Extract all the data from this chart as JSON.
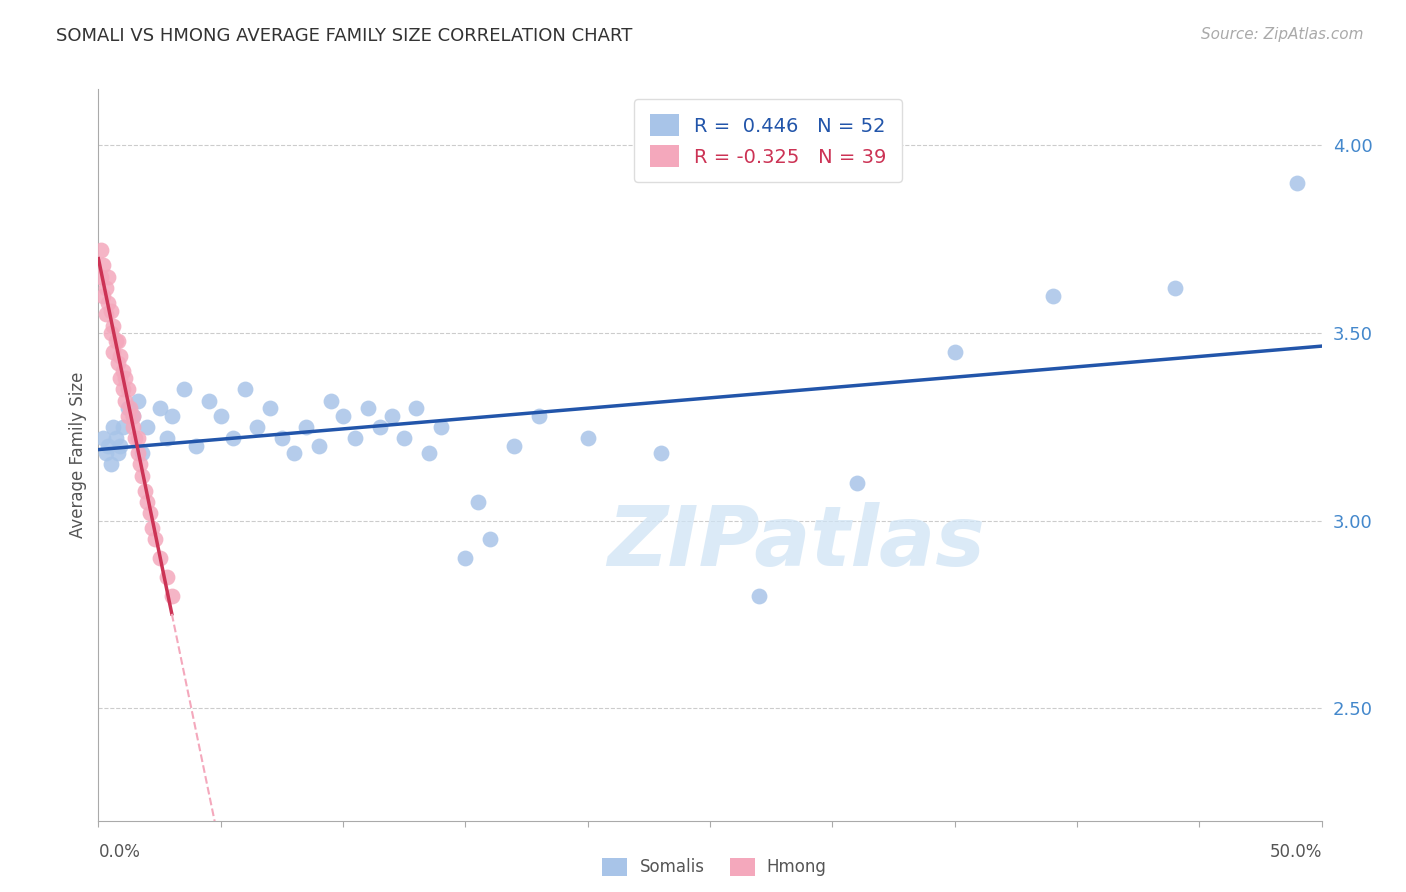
{
  "title": "SOMALI VS HMONG AVERAGE FAMILY SIZE CORRELATION CHART",
  "source": "Source: ZipAtlas.com",
  "ylabel": "Average Family Size",
  "y_ticks_right": [
    2.5,
    3.0,
    3.5,
    4.0
  ],
  "xlim": [
    0.0,
    0.5
  ],
  "ylim": [
    2.2,
    4.15
  ],
  "somali_R": 0.446,
  "somali_N": 52,
  "hmong_R": -0.325,
  "hmong_N": 39,
  "somali_color": "#a8c4e8",
  "hmong_color": "#f4a8bc",
  "somali_line_color": "#2255aa",
  "hmong_line_solid_color": "#cc3355",
  "hmong_line_dashed_color": "#f4a8bc",
  "background_color": "#ffffff",
  "grid_color": "#cccccc",
  "somali_x": [
    0.002,
    0.003,
    0.004,
    0.005,
    0.006,
    0.007,
    0.008,
    0.009,
    0.01,
    0.012,
    0.014,
    0.016,
    0.018,
    0.02,
    0.025,
    0.028,
    0.03,
    0.035,
    0.04,
    0.045,
    0.05,
    0.055,
    0.06,
    0.065,
    0.07,
    0.075,
    0.08,
    0.085,
    0.09,
    0.095,
    0.1,
    0.105,
    0.11,
    0.115,
    0.12,
    0.125,
    0.13,
    0.135,
    0.14,
    0.15,
    0.155,
    0.16,
    0.17,
    0.18,
    0.2,
    0.23,
    0.27,
    0.31,
    0.35,
    0.39,
    0.44,
    0.49
  ],
  "somali_y": [
    3.22,
    3.18,
    3.2,
    3.15,
    3.25,
    3.22,
    3.18,
    3.2,
    3.25,
    3.3,
    3.28,
    3.32,
    3.18,
    3.25,
    3.3,
    3.22,
    3.28,
    3.35,
    3.2,
    3.32,
    3.28,
    3.22,
    3.35,
    3.25,
    3.3,
    3.22,
    3.18,
    3.25,
    3.2,
    3.32,
    3.28,
    3.22,
    3.3,
    3.25,
    3.28,
    3.22,
    3.3,
    3.18,
    3.25,
    2.9,
    3.05,
    2.95,
    3.2,
    3.28,
    3.22,
    3.18,
    2.8,
    3.1,
    3.45,
    3.6,
    3.62,
    3.9
  ],
  "hmong_x": [
    0.001,
    0.001,
    0.002,
    0.002,
    0.003,
    0.003,
    0.004,
    0.004,
    0.005,
    0.005,
    0.006,
    0.006,
    0.007,
    0.008,
    0.008,
    0.009,
    0.009,
    0.01,
    0.01,
    0.011,
    0.011,
    0.012,
    0.012,
    0.013,
    0.014,
    0.014,
    0.015,
    0.016,
    0.016,
    0.017,
    0.018,
    0.019,
    0.02,
    0.021,
    0.022,
    0.023,
    0.025,
    0.028,
    0.03
  ],
  "hmong_y": [
    3.65,
    3.72,
    3.6,
    3.68,
    3.55,
    3.62,
    3.58,
    3.65,
    3.5,
    3.56,
    3.45,
    3.52,
    3.48,
    3.42,
    3.48,
    3.38,
    3.44,
    3.35,
    3.4,
    3.32,
    3.38,
    3.28,
    3.35,
    3.3,
    3.25,
    3.28,
    3.22,
    3.18,
    3.22,
    3.15,
    3.12,
    3.08,
    3.05,
    3.02,
    2.98,
    2.95,
    2.9,
    2.85,
    2.8
  ],
  "hmong_line_x_start": 0.0,
  "hmong_line_x_solid_end": 0.03,
  "hmong_line_x_dashed_end": 0.22,
  "watermark_text": "ZIPatlas",
  "legend_somali_label": "R =  0.446   N = 52",
  "legend_hmong_label": "R = -0.325   N = 39",
  "bottom_legend_somali": "Somalis",
  "bottom_legend_hmong": "Hmong"
}
